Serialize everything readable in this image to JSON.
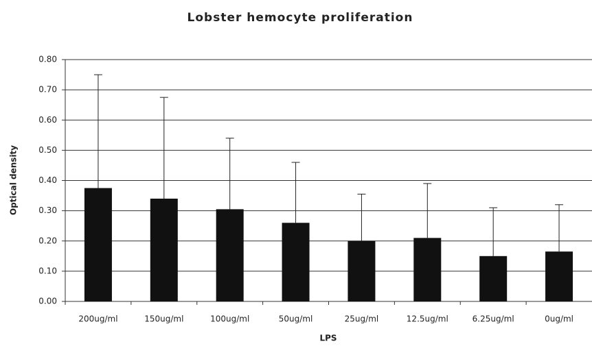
{
  "chart_data": {
    "type": "bar",
    "title": "Lobster hemocyte proliferation",
    "x_label": "LPS",
    "y_label": "Optical density",
    "categories": [
      "200ug/ml",
      "150ug/ml",
      "100ug/ml",
      "50ug/ml",
      "25ug/ml",
      "12.5ug/ml",
      "6.25ug/ml",
      "0ug/ml"
    ],
    "values": [
      0.375,
      0.34,
      0.305,
      0.26,
      0.2,
      0.21,
      0.15,
      0.165
    ],
    "errors": [
      0.375,
      0.335,
      0.235,
      0.2,
      0.155,
      0.18,
      0.16,
      0.155
    ],
    "color": "#111111",
    "ylim": [
      0,
      0.8
    ],
    "yticks": [
      {
        "value": 0,
        "label": "0.00"
      },
      {
        "value": 0.1,
        "label": "0.10"
      },
      {
        "value": 0.2,
        "label": "0.20"
      },
      {
        "value": 0.3,
        "label": "0.30"
      },
      {
        "value": 0.4,
        "label": "0.40"
      },
      {
        "value": 0.5,
        "label": "0.50"
      },
      {
        "value": 0.6,
        "label": "0.60"
      },
      {
        "value": 0.7,
        "label": "0.70"
      },
      {
        "value": 0.8,
        "label": "0.80"
      }
    ],
    "grid": true
  }
}
